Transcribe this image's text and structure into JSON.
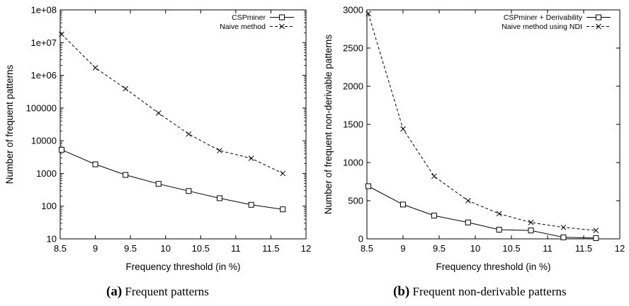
{
  "chart_data": [
    {
      "type": "line",
      "caption_letter": "(a)",
      "caption_text": "Frequent patterns",
      "xlabel": "Frequency threshold (in %)",
      "ylabel": "Number of frequent patterns",
      "yscale": "log",
      "xlim": [
        8.5,
        12
      ],
      "ylim": [
        10,
        100000000
      ],
      "xticks": [
        "8.5",
        "9",
        "9.5",
        "10",
        "10.5",
        "11",
        "11.5",
        "12"
      ],
      "yticks": [
        "10",
        "100",
        "1000",
        "10000",
        "100000",
        "1e+06",
        "1e+07",
        "1e+08"
      ],
      "grid": false,
      "legend_position": "top-right",
      "series": [
        {
          "name": "CSPminer",
          "marker": "square",
          "line": "solid",
          "x": [
            8.52,
            9.0,
            9.43,
            9.9,
            10.33,
            10.77,
            11.22,
            11.67
          ],
          "y": [
            5300,
            1900,
            900,
            480,
            290,
            175,
            110,
            80
          ]
        },
        {
          "name": "Naive method",
          "marker": "cross",
          "line": "dashed",
          "x": [
            8.52,
            9.0,
            9.43,
            9.9,
            10.33,
            10.77,
            11.22,
            11.67
          ],
          "y": [
            18000000,
            1700000,
            390000,
            70000,
            16000,
            5000,
            2900,
            1000
          ]
        }
      ]
    },
    {
      "type": "line",
      "caption_letter": "(b)",
      "caption_text": "Frequent non-derivable patterns",
      "xlabel": "Frequency threshold (in %)",
      "ylabel": "Number of frequent non-derivable patterns",
      "yscale": "linear",
      "xlim": [
        8.5,
        12
      ],
      "ylim": [
        0,
        3000
      ],
      "xticks": [
        "8.5",
        "9",
        "9.5",
        "10",
        "10.5",
        "11",
        "11.5",
        "12"
      ],
      "yticks": [
        "0",
        "500",
        "1000",
        "1500",
        "2000",
        "2500",
        "3000"
      ],
      "grid": false,
      "legend_position": "top-right",
      "series": [
        {
          "name": "CSPminer + Derivability",
          "marker": "square",
          "line": "solid",
          "x": [
            8.52,
            9.0,
            9.43,
            9.9,
            10.33,
            10.77,
            11.22,
            11.67
          ],
          "y": [
            690,
            450,
            305,
            215,
            120,
            110,
            20,
            10
          ]
        },
        {
          "name": "Naive method using NDI",
          "marker": "cross",
          "line": "dashed",
          "x": [
            8.52,
            9.0,
            9.43,
            9.9,
            10.33,
            10.77,
            11.22,
            11.67
          ],
          "y": [
            2950,
            1440,
            820,
            500,
            330,
            215,
            150,
            110
          ]
        }
      ]
    }
  ]
}
